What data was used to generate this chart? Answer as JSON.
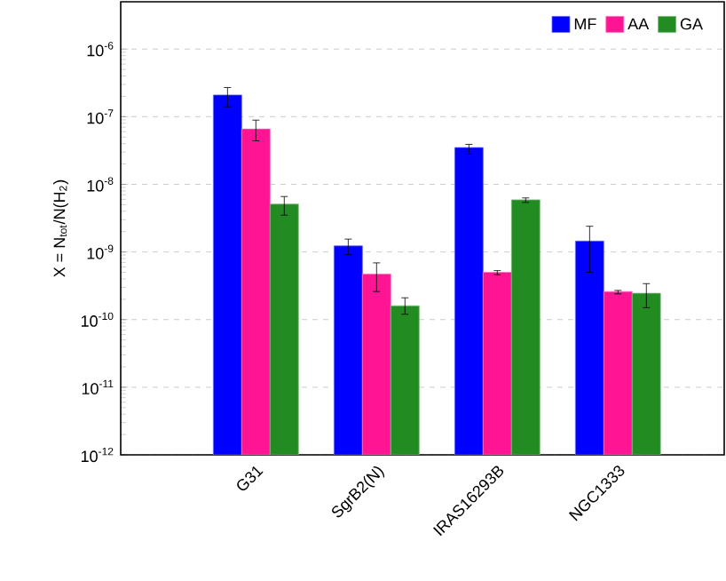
{
  "chart_data": {
    "type": "bar",
    "ylabel": "X = N$_{tot}$/N(H$_{2}$)",
    "categories": [
      "G31",
      "SgrB2(N)",
      "IRAS16293B",
      "NGC1333"
    ],
    "series": [
      {
        "name": "MF",
        "color": "#0000ff",
        "values": [
          2.1e-07,
          1.23e-09,
          3.5e-08,
          1.45e-09
        ],
        "errors": [
          [
            1.4e-07,
            2.7e-07
          ],
          [
            9.1e-10,
            1.55e-09
          ],
          [
            2.8e-08,
            3.9e-08
          ],
          [
            5e-10,
            2.4e-09
          ]
        ]
      },
      {
        "name": "AA",
        "color": "#ff1493",
        "values": [
          6.6e-08,
          4.7e-10,
          5e-10,
          2.6e-10
        ],
        "errors": [
          [
            4.4e-08,
            8.9e-08
          ],
          [
            2.6e-10,
            6.9e-10
          ],
          [
            4.6e-10,
            5.3e-10
          ],
          [
            2.4e-10,
            2.7e-10
          ]
        ]
      },
      {
        "name": "GA",
        "color": "#228b22",
        "values": [
          5.1e-09,
          1.6e-10,
          5.9e-09,
          2.45e-10
        ],
        "errors": [
          [
            3.5e-09,
            6.6e-09
          ],
          [
            1.2e-10,
            2.1e-10
          ],
          [
            5.4e-09,
            6.3e-09
          ],
          [
            1.5e-10,
            3.4e-10
          ]
        ]
      }
    ],
    "log": "y",
    "ylim": [
      1e-12,
      5e-06
    ],
    "yticks": [
      {
        "value": 1e-12,
        "label": "10$^{-12}$"
      },
      {
        "value": 1e-11,
        "label": "10$^{-11}$"
      },
      {
        "value": 1e-10,
        "label": "10$^{-10}$"
      },
      {
        "value": 1e-09,
        "label": "10$^{-9}$"
      },
      {
        "value": 1e-08,
        "label": "10$^{-8}$"
      },
      {
        "value": 1e-07,
        "label": "10$^{-7}$"
      },
      {
        "value": 1e-06,
        "label": "10$^{-6}$"
      }
    ],
    "grid": "y",
    "legend": "top right"
  }
}
